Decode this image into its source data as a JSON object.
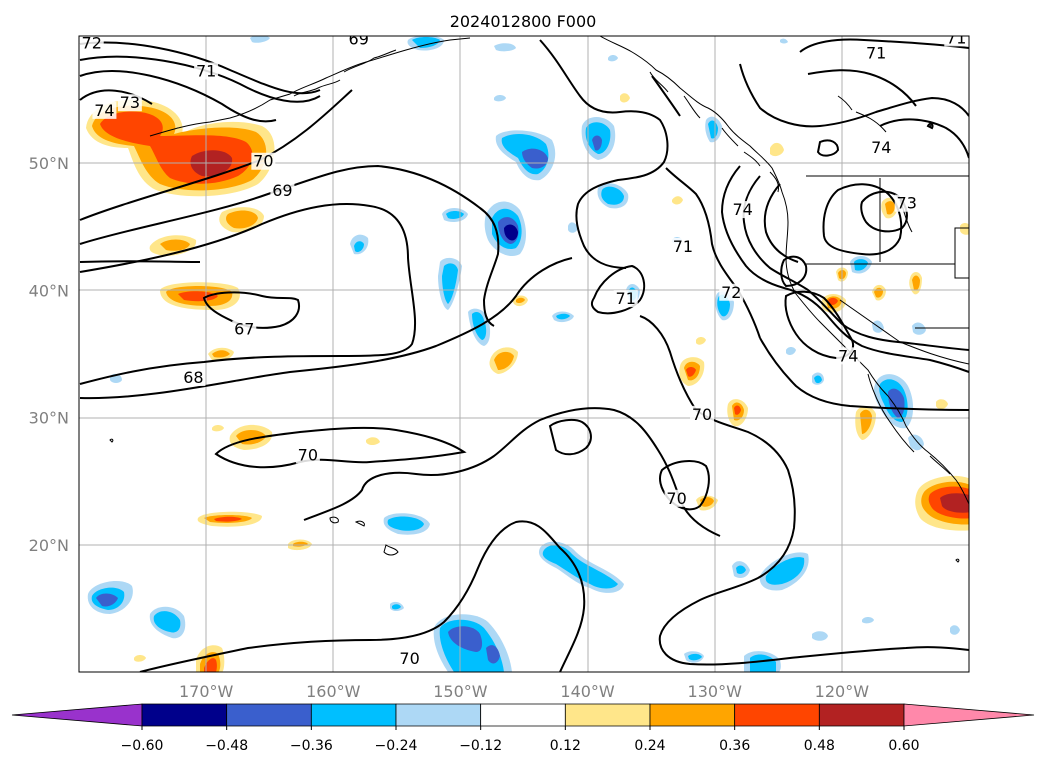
{
  "title": "2024012800 F000",
  "map": {
    "lon_range": [
      -180,
      -110
    ],
    "lat_range": [
      10,
      60
    ],
    "lat_labels": [
      {
        "lat": 50,
        "label": "50°N"
      },
      {
        "lat": 40,
        "label": "40°N"
      },
      {
        "lat": 30,
        "label": "30°N"
      },
      {
        "lat": 20,
        "label": "20°N"
      }
    ],
    "lon_labels": [
      {
        "lon": -170,
        "label": "170°W"
      },
      {
        "lon": -160,
        "label": "160°W"
      },
      {
        "lon": -150,
        "label": "150°W"
      },
      {
        "lon": -140,
        "label": "140°W"
      },
      {
        "lon": -130,
        "label": "130°W"
      },
      {
        "lon": -120,
        "label": "120°W"
      }
    ],
    "contour_labels": [
      {
        "value": "72",
        "lon": -179,
        "lat": 59.1
      },
      {
        "value": "69",
        "lon": -158,
        "lat": 59.4
      },
      {
        "value": "71",
        "lon": -170,
        "lat": 56.9
      },
      {
        "value": "74",
        "lon": -178,
        "lat": 53.8
      },
      {
        "value": "73",
        "lon": -176,
        "lat": 54.4
      },
      {
        "value": "70",
        "lon": -165.5,
        "lat": 49.8
      },
      {
        "value": "69",
        "lon": -164,
        "lat": 47.5
      },
      {
        "value": "67",
        "lon": -167,
        "lat": 36.6
      },
      {
        "value": "68",
        "lon": -171,
        "lat": 32.8
      },
      {
        "value": "70",
        "lon": -162,
        "lat": 26.7
      },
      {
        "value": "70",
        "lon": -154,
        "lat": 10.7
      },
      {
        "value": "71",
        "lon": -137,
        "lat": 39.0
      },
      {
        "value": "71",
        "lon": -132.5,
        "lat": 43.1
      },
      {
        "value": "72",
        "lon": -128.7,
        "lat": 39.5
      },
      {
        "value": "74",
        "lon": -127.8,
        "lat": 46.0
      },
      {
        "value": "73",
        "lon": -114.9,
        "lat": 46.5
      },
      {
        "value": "74",
        "lon": -116.9,
        "lat": 50.9
      },
      {
        "value": "71",
        "lon": -117.3,
        "lat": 58.3
      },
      {
        "value": "71",
        "lon": -111,
        "lat": 59.5
      },
      {
        "value": "74",
        "lon": -119.5,
        "lat": 34.5
      },
      {
        "value": "70",
        "lon": -131.0,
        "lat": 29.9
      },
      {
        "value": "70",
        "lon": -133.0,
        "lat": 23.3
      }
    ]
  },
  "colorbar": {
    "levels": [
      "−0.60",
      "−0.48",
      "−0.36",
      "−0.24",
      "−0.12",
      "0.12",
      "0.24",
      "0.36",
      "0.48",
      "0.60"
    ],
    "colors": [
      "#9932cc",
      "#00008b",
      "#3a5fcd",
      "#00bfff",
      "#add8f5",
      "#ffffff",
      "#ffe68a",
      "#ffa500",
      "#ff4500",
      "#b22222",
      "#ff88aa",
      "#ff88aa"
    ]
  },
  "palette": {
    "neg1": "#add8f5",
    "neg2": "#00bfff",
    "neg3": "#3a5fcd",
    "neg4": "#00008b",
    "pos1": "#ffe68a",
    "pos2": "#ffa500",
    "pos3": "#ff4500",
    "pos4": "#b22222"
  }
}
